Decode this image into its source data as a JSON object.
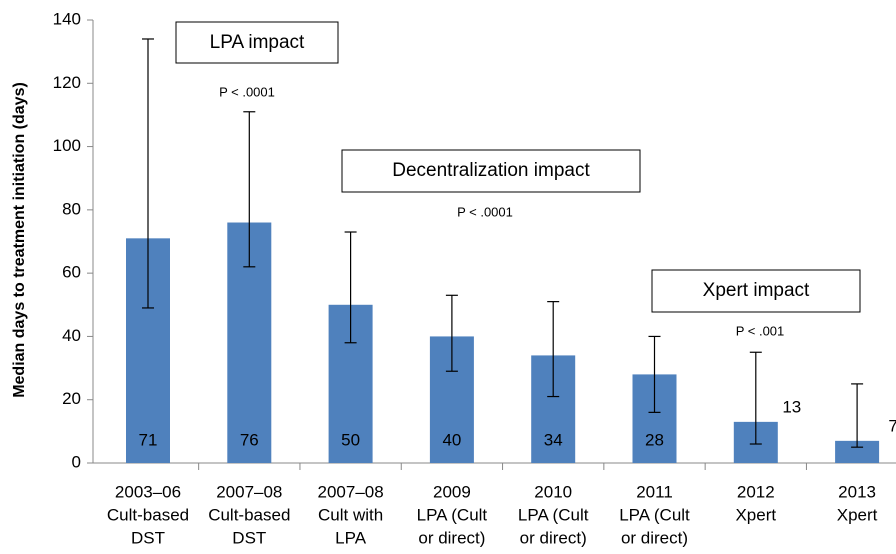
{
  "chart_data": {
    "type": "bar",
    "y_label": "Median days to treatment initiation (days)",
    "categories": [
      [
        "2003–06",
        "Cult-based",
        "DST"
      ],
      [
        "2007–08",
        "Cult-based",
        "DST"
      ],
      [
        "2007–08",
        "Cult with",
        "LPA"
      ],
      [
        "2009",
        "LPA (Cult",
        "or direct)"
      ],
      [
        "2010",
        "LPA (Cult",
        "or direct)"
      ],
      [
        "2011",
        "LPA (Cult",
        "or direct)"
      ],
      [
        "2012",
        "Xpert"
      ],
      [
        "2013",
        "Xpert"
      ]
    ],
    "values": [
      71,
      76,
      50,
      40,
      34,
      28,
      13,
      7
    ],
    "error_upper": [
      134,
      111,
      73,
      53,
      51,
      40,
      35,
      25
    ],
    "error_lower": [
      49,
      62,
      38,
      29,
      21,
      16,
      6,
      5
    ],
    "color": "#4f81bd",
    "ylim": [
      0,
      140
    ],
    "yticks": [
      0,
      20,
      40,
      60,
      80,
      100,
      120,
      140
    ],
    "annotations": [
      "LPA impact",
      "P < .0001",
      "Decentralization impact",
      "P < .0001",
      "Xpert impact",
      "P < .001"
    ]
  }
}
